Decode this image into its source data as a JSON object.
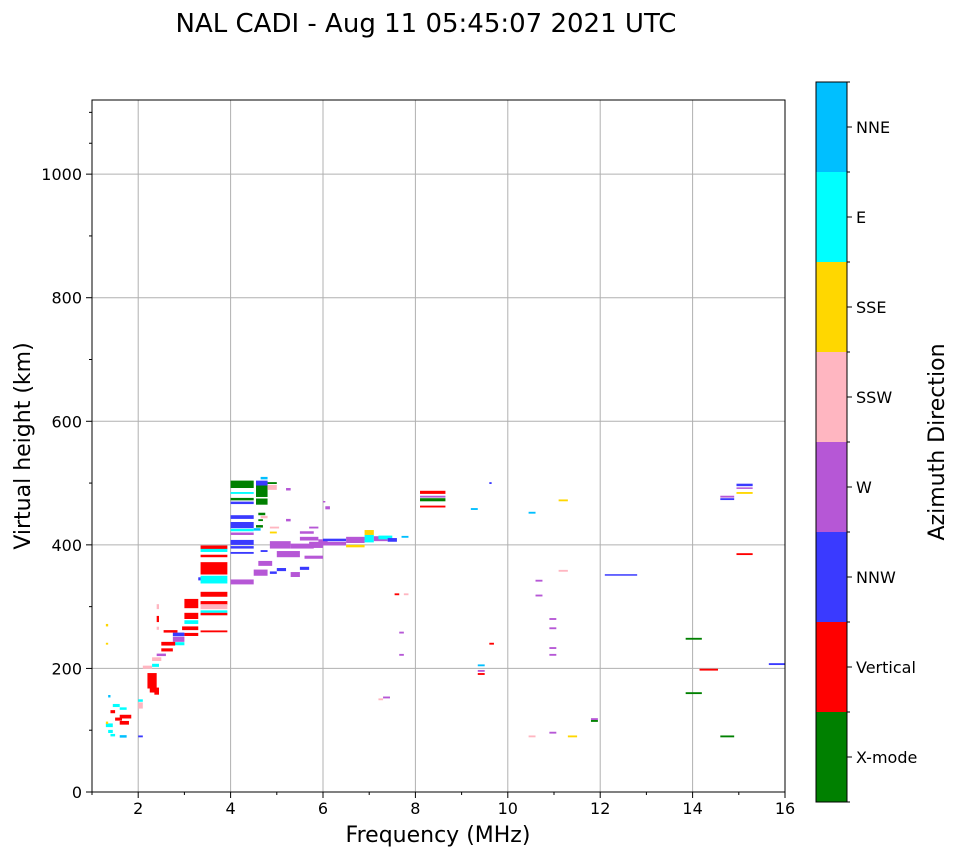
{
  "chart_data": {
    "type": "scatter",
    "title": "NAL CADI - Aug 11 05:45:07 2021 UTC",
    "xlabel": "Frequency (MHz)",
    "ylabel": "Virtual height (km)",
    "xlim": [
      1,
      16
    ],
    "ylim": [
      0,
      1120
    ],
    "xticks": [
      2,
      4,
      6,
      8,
      10,
      12,
      14,
      16
    ],
    "yticks": [
      0,
      200,
      400,
      600,
      800,
      1000
    ],
    "grid": true,
    "colorbar": {
      "label": "Azimuth Direction",
      "categories": [
        "X-mode",
        "Vertical",
        "NNW",
        "W",
        "SSW",
        "SSE",
        "E",
        "NNE"
      ],
      "colors": [
        "#008000",
        "#ff0000",
        "#3a3aff",
        "#b657d6",
        "#ffb6c1",
        "#ffd700",
        "#00ffff",
        "#00bfff"
      ]
    },
    "segments_note": "each segment: [freq_start_MHz, freq_end_MHz, height_km, category_index, thickness_km]",
    "segments": [
      [
        3.35,
        3.93,
        396,
        1,
        6
      ],
      [
        3.35,
        3.93,
        391,
        6,
        5
      ],
      [
        3.35,
        3.93,
        382,
        1,
        4
      ],
      [
        3.35,
        3.93,
        362,
        1,
        20
      ],
      [
        3.35,
        3.93,
        346,
        6,
        8
      ],
      [
        3.35,
        3.93,
        340,
        6,
        5
      ],
      [
        3.3,
        3.35,
        345,
        2,
        5
      ],
      [
        3.35,
        3.93,
        320,
        1,
        8
      ],
      [
        3.35,
        3.93,
        306,
        1,
        6
      ],
      [
        3.35,
        3.93,
        300,
        4,
        8
      ],
      [
        3.35,
        3.93,
        292,
        6,
        4
      ],
      [
        3.35,
        3.93,
        288,
        1,
        4
      ],
      [
        3.35,
        3.93,
        260,
        1,
        3
      ],
      [
        3.0,
        3.3,
        305,
        1,
        15
      ],
      [
        3.0,
        3.3,
        285,
        1,
        10
      ],
      [
        3.0,
        3.3,
        275,
        6,
        6
      ],
      [
        2.95,
        3.3,
        265,
        1,
        6
      ],
      [
        3.0,
        3.3,
        255,
        1,
        5
      ],
      [
        2.75,
        3.0,
        255,
        2,
        6
      ],
      [
        2.75,
        3.0,
        247,
        3,
        8
      ],
      [
        2.75,
        3.0,
        240,
        6,
        5
      ],
      [
        2.55,
        2.85,
        260,
        1,
        4
      ],
      [
        2.5,
        2.8,
        240,
        1,
        6
      ],
      [
        2.5,
        2.75,
        230,
        1,
        5
      ],
      [
        2.4,
        2.6,
        222,
        3,
        4
      ],
      [
        2.3,
        2.5,
        215,
        4,
        6
      ],
      [
        2.3,
        2.45,
        205,
        6,
        5
      ],
      [
        2.1,
        2.3,
        202,
        4,
        5
      ],
      [
        2.2,
        2.4,
        180,
        1,
        25
      ],
      [
        2.25,
        2.45,
        165,
        1,
        8
      ],
      [
        2.35,
        2.45,
        160,
        1,
        5
      ],
      [
        2.0,
        2.1,
        140,
        4,
        10
      ],
      [
        2.0,
        2.1,
        148,
        6,
        4
      ],
      [
        1.6,
        1.85,
        122,
        1,
        6
      ],
      [
        1.5,
        1.65,
        118,
        1,
        5
      ],
      [
        1.6,
        1.8,
        112,
        1,
        6
      ],
      [
        1.4,
        1.5,
        130,
        1,
        5
      ],
      [
        1.6,
        1.75,
        135,
        6,
        4
      ],
      [
        1.45,
        1.6,
        140,
        6,
        5
      ],
      [
        1.3,
        1.45,
        108,
        6,
        6
      ],
      [
        1.35,
        1.45,
        98,
        6,
        5
      ],
      [
        1.4,
        1.5,
        92,
        6,
        4
      ],
      [
        1.6,
        1.75,
        90,
        7,
        4
      ],
      [
        2.0,
        2.1,
        90,
        2,
        3
      ],
      [
        1.3,
        1.35,
        112,
        5,
        4
      ],
      [
        1.3,
        1.35,
        270,
        5,
        4
      ],
      [
        1.3,
        1.35,
        240,
        5,
        3
      ],
      [
        1.35,
        1.4,
        155,
        7,
        4
      ],
      [
        2.4,
        2.45,
        300,
        4,
        8
      ],
      [
        2.4,
        2.45,
        280,
        1,
        10
      ],
      [
        2.4,
        2.45,
        265,
        4,
        5
      ],
      [
        4.0,
        4.5,
        340,
        3,
        8
      ],
      [
        4.0,
        4.5,
        387,
        2,
        3
      ],
      [
        4.0,
        4.5,
        498,
        0,
        12
      ],
      [
        4.0,
        4.5,
        484,
        6,
        3
      ],
      [
        4.0,
        4.5,
        474,
        0,
        4
      ],
      [
        4.0,
        4.5,
        468,
        2,
        4
      ],
      [
        4.0,
        4.5,
        445,
        2,
        6
      ],
      [
        4.0,
        4.5,
        432,
        2,
        10
      ],
      [
        4.0,
        4.5,
        424,
        6,
        4
      ],
      [
        4.0,
        4.5,
        418,
        3,
        4
      ],
      [
        4.0,
        4.5,
        404,
        2,
        8
      ],
      [
        4.0,
        4.5,
        396,
        2,
        4
      ],
      [
        4.55,
        4.8,
        490,
        0,
        25
      ],
      [
        4.55,
        4.8,
        470,
        0,
        10
      ],
      [
        4.55,
        4.8,
        500,
        2,
        8
      ],
      [
        4.65,
        4.8,
        508,
        7,
        4
      ],
      [
        4.8,
        5.0,
        500,
        0,
        3
      ],
      [
        4.8,
        5.0,
        493,
        4,
        8
      ],
      [
        4.6,
        4.75,
        450,
        0,
        4
      ],
      [
        4.65,
        4.8,
        445,
        4,
        4
      ],
      [
        4.6,
        4.7,
        440,
        0,
        3
      ],
      [
        4.55,
        4.7,
        430,
        0,
        4
      ],
      [
        4.5,
        4.65,
        425,
        7,
        4
      ],
      [
        4.85,
        5.05,
        428,
        4,
        3
      ],
      [
        4.85,
        5.0,
        420,
        5,
        3
      ],
      [
        4.65,
        4.8,
        390,
        2,
        3
      ],
      [
        4.6,
        4.9,
        370,
        3,
        8
      ],
      [
        4.5,
        4.8,
        355,
        3,
        10
      ],
      [
        4.85,
        5.0,
        355,
        2,
        4
      ],
      [
        5.0,
        5.2,
        360,
        2,
        5
      ],
      [
        5.3,
        5.5,
        352,
        3,
        8
      ],
      [
        5.5,
        5.7,
        362,
        2,
        5
      ],
      [
        4.85,
        5.3,
        400,
        3,
        12
      ],
      [
        5.0,
        5.5,
        385,
        3,
        10
      ],
      [
        5.3,
        5.8,
        398,
        3,
        8
      ],
      [
        5.5,
        5.9,
        410,
        3,
        6
      ],
      [
        5.7,
        6.0,
        400,
        3,
        10
      ],
      [
        5.6,
        6.0,
        380,
        3,
        5
      ],
      [
        5.5,
        5.8,
        420,
        3,
        4
      ],
      [
        5.9,
        6.1,
        405,
        3,
        8
      ],
      [
        6.0,
        6.5,
        408,
        2,
        4
      ],
      [
        6.0,
        6.5,
        402,
        3,
        6
      ],
      [
        6.5,
        6.9,
        408,
        3,
        10
      ],
      [
        6.5,
        6.9,
        398,
        5,
        4
      ],
      [
        6.6,
        7.0,
        410,
        3,
        4
      ],
      [
        6.9,
        7.1,
        420,
        5,
        8
      ],
      [
        6.9,
        7.1,
        410,
        6,
        12
      ],
      [
        7.1,
        7.4,
        410,
        3,
        8
      ],
      [
        7.2,
        7.5,
        412,
        6,
        6
      ],
      [
        7.4,
        7.6,
        408,
        2,
        6
      ],
      [
        7.7,
        7.85,
        413,
        7,
        3
      ],
      [
        5.2,
        5.3,
        490,
        3,
        4
      ],
      [
        5.2,
        5.3,
        440,
        3,
        4
      ],
      [
        6.0,
        6.05,
        470,
        3,
        2
      ],
      [
        6.05,
        6.15,
        460,
        3,
        5
      ],
      [
        5.7,
        5.9,
        428,
        3,
        3
      ],
      [
        8.1,
        8.65,
        485,
        1,
        5
      ],
      [
        8.1,
        8.65,
        478,
        3,
        3
      ],
      [
        8.1,
        8.65,
        473,
        0,
        5
      ],
      [
        8.1,
        8.65,
        462,
        1,
        3
      ],
      [
        7.55,
        7.65,
        320,
        1,
        3
      ],
      [
        7.75,
        7.85,
        320,
        4,
        3
      ],
      [
        7.65,
        7.75,
        258,
        3,
        3
      ],
      [
        7.65,
        7.75,
        222,
        3,
        3
      ],
      [
        7.3,
        7.45,
        153,
        3,
        3
      ],
      [
        7.2,
        7.3,
        150,
        4,
        3
      ],
      [
        9.2,
        9.35,
        458,
        7,
        3
      ],
      [
        9.6,
        9.65,
        500,
        2,
        3
      ],
      [
        9.6,
        9.7,
        240,
        1,
        3
      ],
      [
        9.35,
        9.5,
        205,
        7,
        3
      ],
      [
        9.35,
        9.5,
        196,
        3,
        3
      ],
      [
        9.35,
        9.5,
        191,
        1,
        3
      ],
      [
        10.45,
        10.6,
        452,
        7,
        3
      ],
      [
        10.6,
        10.75,
        342,
        3,
        3
      ],
      [
        10.6,
        10.75,
        318,
        3,
        3
      ],
      [
        10.9,
        11.05,
        280,
        3,
        3
      ],
      [
        10.9,
        11.05,
        265,
        3,
        3
      ],
      [
        10.9,
        11.05,
        233,
        3,
        3
      ],
      [
        10.9,
        11.05,
        222,
        3,
        3
      ],
      [
        10.9,
        11.05,
        96,
        3,
        3
      ],
      [
        10.45,
        10.6,
        90,
        4,
        3
      ],
      [
        11.1,
        11.3,
        472,
        5,
        3
      ],
      [
        11.1,
        11.3,
        358,
        4,
        3
      ],
      [
        11.3,
        11.5,
        90,
        5,
        3
      ],
      [
        11.8,
        11.95,
        118,
        3,
        3
      ],
      [
        11.8,
        11.95,
        115,
        0,
        3
      ],
      [
        12.1,
        12.8,
        352,
        2,
        1
      ],
      [
        13.85,
        14.2,
        248,
        0,
        3
      ],
      [
        13.85,
        14.2,
        160,
        0,
        3
      ],
      [
        14.15,
        14.55,
        198,
        1,
        3
      ],
      [
        14.6,
        14.9,
        90,
        0,
        3
      ],
      [
        14.6,
        14.9,
        478,
        3,
        3
      ],
      [
        14.6,
        14.9,
        474,
        2,
        3
      ],
      [
        14.95,
        15.3,
        497,
        2,
        4
      ],
      [
        14.95,
        15.3,
        492,
        3,
        2
      ],
      [
        14.95,
        15.3,
        484,
        5,
        3
      ],
      [
        14.95,
        15.3,
        385,
        1,
        3
      ],
      [
        15.65,
        16,
        207,
        2,
        3
      ]
    ]
  }
}
